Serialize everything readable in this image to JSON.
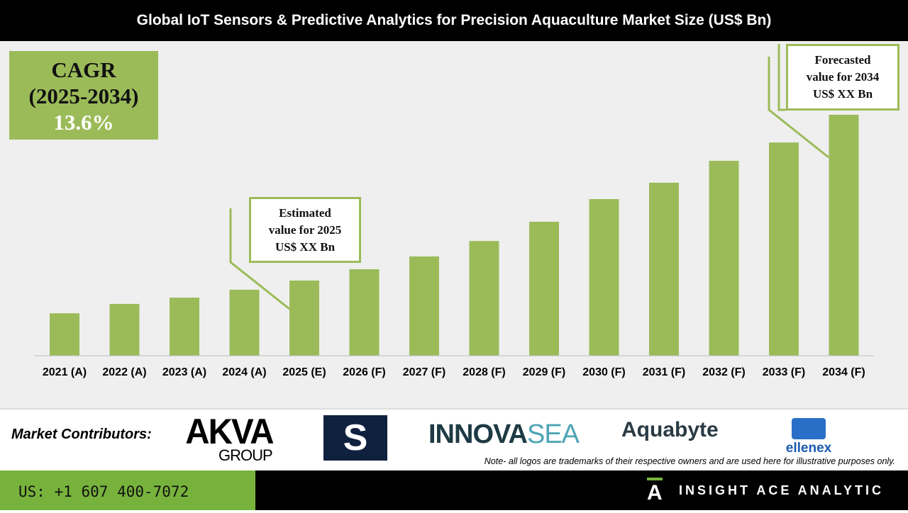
{
  "header": {
    "title": "Global IoT Sensors & Predictive Analytics for Precision Aquaculture Market Size (US$ Bn)"
  },
  "cagr": {
    "label": "CAGR",
    "period": "(2025-2034)",
    "value": "13.6%"
  },
  "callouts": {
    "estimated": [
      "Estimated",
      "value for 2025",
      "US$ XX Bn"
    ],
    "forecasted": [
      "Forecasted",
      "value for 2034",
      "US$ XX Bn"
    ]
  },
  "chart_data": {
    "type": "bar",
    "title": "Global IoT Sensors & Predictive Analytics for Precision Aquaculture Market Size (US$ Bn)",
    "categories": [
      "2021 (A)",
      "2022 (A)",
      "2023 (A)",
      "2024 (A)",
      "2025 (E)",
      "2026 (F)",
      "2027 (F)",
      "2028 (F)",
      "2029 (F)",
      "2030 (F)",
      "2031 (F)",
      "2032 (F)",
      "2033 (F)",
      "2034 (F)"
    ],
    "values": [
      17.6,
      21.5,
      24.1,
      27.4,
      31.2,
      35.9,
      41.2,
      47.6,
      55.6,
      65.0,
      71.8,
      80.9,
      88.5,
      100
    ],
    "value_note_units": "relative (no y-axis printed)",
    "ylim": [
      0,
      100
    ],
    "grid": false,
    "bar_color": "#9bbb59"
  },
  "contributors": {
    "label": "Market Contributors:",
    "logos": [
      "AKVA",
      "GROUP",
      "S",
      "INNOVA",
      "SEA",
      "Aquabyte",
      "ellenex"
    ],
    "note": "Note- all logos are trademarks of their respective owners and are used here for illustrative purposes only."
  },
  "footer": {
    "phone": "US: +1 607 400-7072",
    "brand": "INSIGHT ACE ANALYTIC",
    "brand_icon_letter": "A",
    "accent": "#77b33c"
  }
}
